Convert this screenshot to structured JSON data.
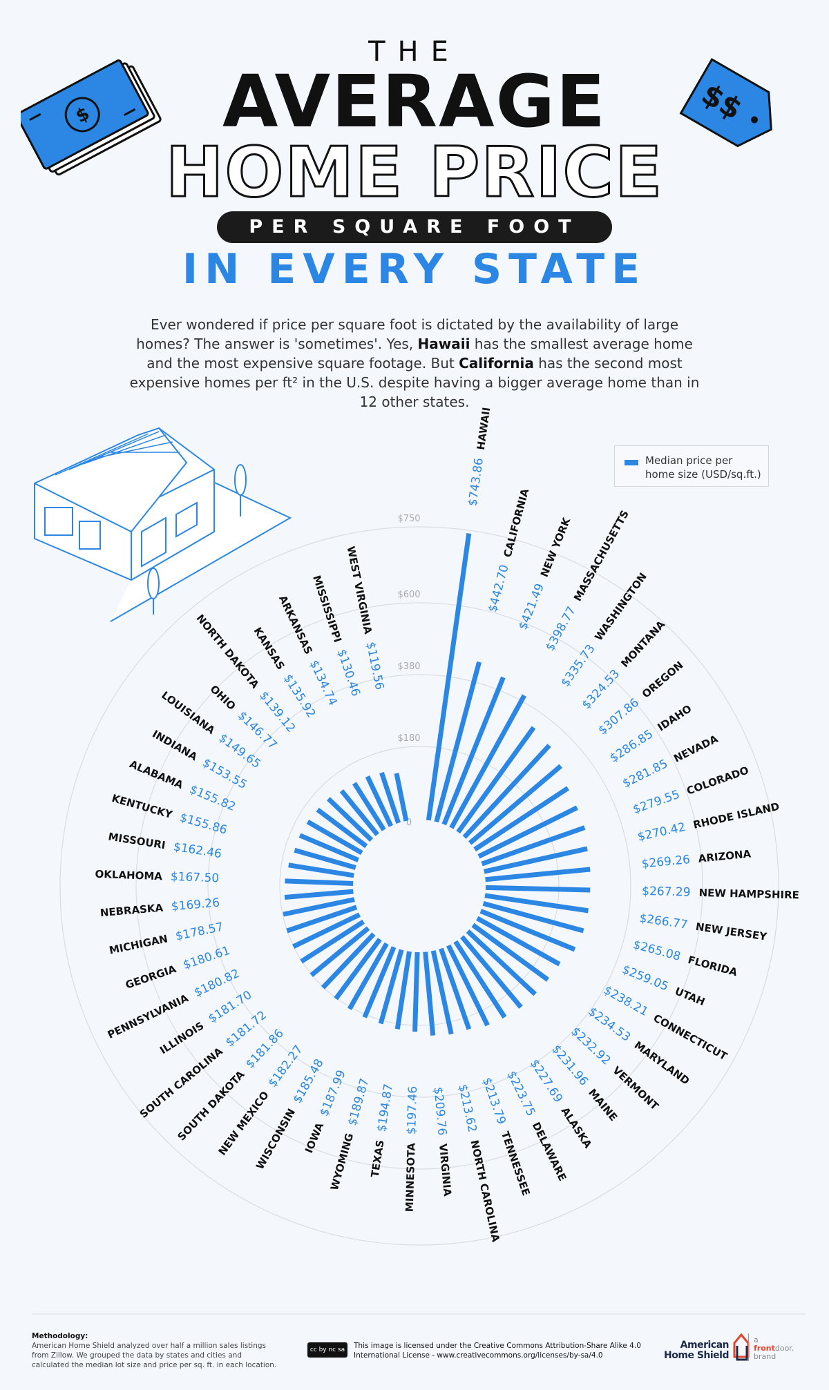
{
  "title": {
    "line1": "THE",
    "line2": "AVERAGE",
    "line3": "HOME PRICE",
    "line4": "PER SQUARE FOOT",
    "line5": "IN EVERY STATE"
  },
  "intro": {
    "p1": "Ever wondered if price per square foot is dictated by the availability of large homes? The answer is 'sometimes'. Yes, ",
    "b1": "Hawaii",
    "p2": " has the smallest average home and the most expensive square footage. But ",
    "b2": "California",
    "p3": " has the second most expensive homes per ft² in the U.S. despite having a bigger average home than in 12 other states."
  },
  "legend": {
    "label": "Median price per home size (USD/sq.ft.)",
    "color": "#2b87e3"
  },
  "colors": {
    "bar": "#2b87e3",
    "ring": "#d8dde3",
    "text": "#111111"
  },
  "chart_data": {
    "type": "radial-bar",
    "ring_ticks": [
      "0",
      "$180",
      "$380",
      "$600",
      "$750"
    ],
    "ring_values": [
      0,
      180,
      380,
      600,
      750
    ],
    "legend": "Median price per home size (USD/sq.ft.)",
    "legend_position": "top-right",
    "series": [
      {
        "name": "Median price per home size (USD/sq.ft.)",
        "data": [
          {
            "state": "HAWAII",
            "value": 743.86,
            "label": "$743.86"
          },
          {
            "state": "CALIFORNIA",
            "value": 442.7,
            "label": "$442.70"
          },
          {
            "state": "NEW YORK",
            "value": 421.49,
            "label": "$421.49"
          },
          {
            "state": "MASSACHUSETTS",
            "value": 398.77,
            "label": "$398.77"
          },
          {
            "state": "WASHINGTON",
            "value": 335.73,
            "label": "$335.73"
          },
          {
            "state": "MONTANA",
            "value": 324.53,
            "label": "$324.53"
          },
          {
            "state": "OREGON",
            "value": 307.86,
            "label": "$307.86"
          },
          {
            "state": "IDAHO",
            "value": 286.85,
            "label": "$286.85"
          },
          {
            "state": "NEVADA",
            "value": 281.85,
            "label": "$281.85"
          },
          {
            "state": "COLORADO",
            "value": 279.55,
            "label": "$279.55"
          },
          {
            "state": "RHODE ISLAND",
            "value": 270.42,
            "label": "$270.42"
          },
          {
            "state": "ARIZONA",
            "value": 269.26,
            "label": "$269.26"
          },
          {
            "state": "NEW HAMPSHIRE",
            "value": 267.29,
            "label": "$267.29"
          },
          {
            "state": "NEW JERSEY",
            "value": 266.77,
            "label": "$266.77"
          },
          {
            "state": "FLORIDA",
            "value": 265.08,
            "label": "$265.08"
          },
          {
            "state": "UTAH",
            "value": 259.05,
            "label": "$259.05"
          },
          {
            "state": "CONNECTICUT",
            "value": 238.21,
            "label": "$238.21"
          },
          {
            "state": "MARYLAND",
            "value": 234.53,
            "label": "$234.53"
          },
          {
            "state": "VERMONT",
            "value": 232.92,
            "label": "$232.92"
          },
          {
            "state": "MAINE",
            "value": 231.96,
            "label": "$231.96"
          },
          {
            "state": "ALASKA",
            "value": 227.69,
            "label": "$227.69"
          },
          {
            "state": "DELAWARE",
            "value": 223.75,
            "label": "$223.75"
          },
          {
            "state": "TENNESSEE",
            "value": 213.79,
            "label": "$213.79"
          },
          {
            "state": "NORTH CAROLINA",
            "value": 213.62,
            "label": "$213.62"
          },
          {
            "state": "VIRGINIA",
            "value": 209.76,
            "label": "$209.76"
          },
          {
            "state": "MINNESOTA",
            "value": 197.46,
            "label": "$197.46"
          },
          {
            "state": "TEXAS",
            "value": 194.87,
            "label": "$194.87"
          },
          {
            "state": "WYOMING",
            "value": 189.87,
            "label": "$189.87"
          },
          {
            "state": "IOWA",
            "value": 187.99,
            "label": "$187.99"
          },
          {
            "state": "WISCONSIN",
            "value": 185.48,
            "label": "$185.48"
          },
          {
            "state": "NEW MEXICO",
            "value": 182.27,
            "label": "$182.27"
          },
          {
            "state": "SOUTH DAKOTA",
            "value": 181.86,
            "label": "$181.86"
          },
          {
            "state": "SOUTH CAROLINA",
            "value": 181.72,
            "label": "$181.72"
          },
          {
            "state": "ILLINOIS",
            "value": 181.7,
            "label": "$181.70"
          },
          {
            "state": "PENNSYLVANIA",
            "value": 180.82,
            "label": "$180.82"
          },
          {
            "state": "GEORGIA",
            "value": 180.61,
            "label": "$180.61"
          },
          {
            "state": "MICHIGAN",
            "value": 178.57,
            "label": "$178.57"
          },
          {
            "state": "NEBRASKA",
            "value": 169.26,
            "label": "$169.26"
          },
          {
            "state": "OKLAHOMA",
            "value": 167.5,
            "label": "$167.50"
          },
          {
            "state": "MISSOURI",
            "value": 162.46,
            "label": "$162.46"
          },
          {
            "state": "KENTUCKY",
            "value": 155.86,
            "label": "$155.86"
          },
          {
            "state": "ALABAMA",
            "value": 155.82,
            "label": "$155.82"
          },
          {
            "state": "INDIANA",
            "value": 153.55,
            "label": "$153.55"
          },
          {
            "state": "LOUISIANA",
            "value": 149.65,
            "label": "$149.65"
          },
          {
            "state": "OHIO",
            "value": 146.77,
            "label": "$146.77"
          },
          {
            "state": "NORTH DAKOTA",
            "value": 139.12,
            "label": "$139.12"
          },
          {
            "state": "KANSAS",
            "value": 135.92,
            "label": "$135.92"
          },
          {
            "state": "ARKANSAS",
            "value": 134.74,
            "label": "$134.74"
          },
          {
            "state": "MISSISSIPPI",
            "value": 130.46,
            "label": "$130.46"
          },
          {
            "state": "WEST VIRGINIA",
            "value": 119.56,
            "label": "$119.56"
          }
        ]
      }
    ]
  },
  "footer": {
    "methodology_title": "Methodology:",
    "methodology_text": "American Home Shield analyzed over half a million sales listings from Zillow. We grouped the data by states and cities and calculated the median lot size and price per sq. ft. in each location.",
    "cc_badge": "cc by nc sa",
    "license_text": "This image is licensed under the Creative Commons Attribution-Share Alike 4.0 International License - www.creativecommons.org/licenses/by-sa/4.0",
    "brand_name": "American Home Shield",
    "brand_tag_a": "a",
    "brand_tag_front": "front",
    "brand_tag_door": "door.",
    "brand_tag_brand": "brand"
  }
}
